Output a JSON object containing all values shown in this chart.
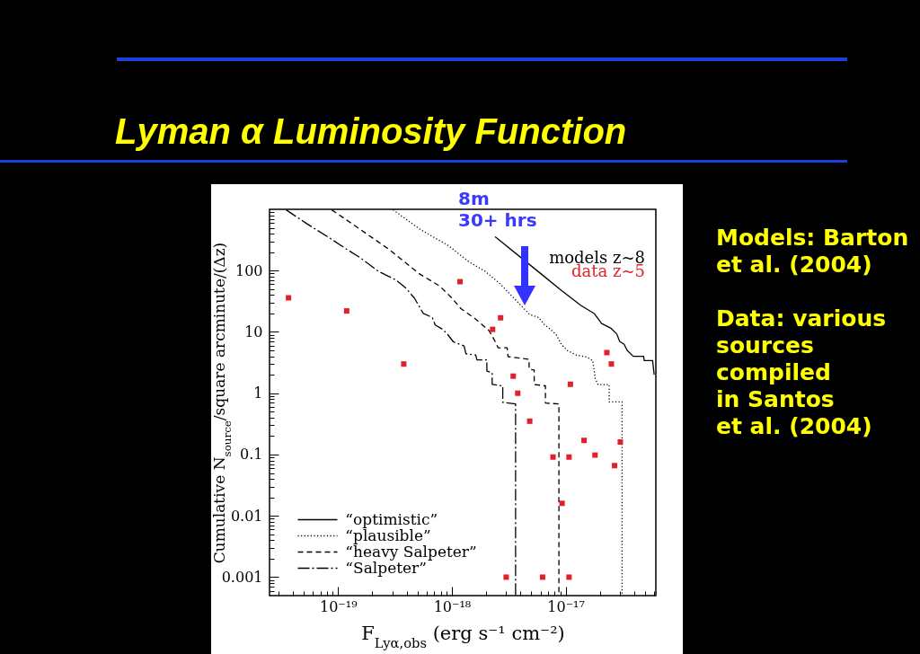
{
  "chart_data": {
    "type": "line",
    "title": "Lyman α Luminosity Function",
    "xlabel": "F$_{Lyα,obs}$ (erg s⁻¹ cm⁻²)",
    "ylabel": "Cumulative N$_{source}$/square arcminute/(Δz)",
    "log": "xy",
    "xlim": [
      2.5e-20,
      6.2e-17
    ],
    "ylim": [
      0.0005,
      1000
    ],
    "xticks": [
      {
        "value": 3e-20,
        "label": null
      },
      {
        "value": 4e-20,
        "label": null
      },
      {
        "value": 5e-20,
        "label": null
      },
      {
        "value": 6e-20,
        "label": null
      },
      {
        "value": 7e-20,
        "label": null
      },
      {
        "value": 8e-20,
        "label": null
      },
      {
        "value": 9e-20,
        "label": null
      },
      {
        "value": 1e-19,
        "label": "10⁻¹⁹"
      },
      {
        "value": 2e-19,
        "label": null
      },
      {
        "value": 3e-19,
        "label": null
      },
      {
        "value": 4e-19,
        "label": null
      },
      {
        "value": 5e-19,
        "label": null
      },
      {
        "value": 6e-19,
        "label": null
      },
      {
        "value": 7e-19,
        "label": null
      },
      {
        "value": 8e-19,
        "label": null
      },
      {
        "value": 9e-19,
        "label": null
      },
      {
        "value": 1e-18,
        "label": "10⁻¹⁸"
      },
      {
        "value": 2e-18,
        "label": null
      },
      {
        "value": 3e-18,
        "label": null
      },
      {
        "value": 4e-18,
        "label": null
      },
      {
        "value": 5e-18,
        "label": null
      },
      {
        "value": 6e-18,
        "label": null
      },
      {
        "value": 7e-18,
        "label": null
      },
      {
        "value": 8e-18,
        "label": null
      },
      {
        "value": 9e-18,
        "label": null
      },
      {
        "value": 1e-17,
        "label": "10⁻¹⁷"
      },
      {
        "value": 2e-17,
        "label": null
      },
      {
        "value": 3e-17,
        "label": null
      },
      {
        "value": 4e-17,
        "label": null
      },
      {
        "value": 5e-17,
        "label": null
      },
      {
        "value": 6e-17,
        "label": null
      }
    ],
    "yticks": [
      {
        "value": 0.0006,
        "label": null
      },
      {
        "value": 0.0007,
        "label": null
      },
      {
        "value": 0.0008,
        "label": null
      },
      {
        "value": 0.0009,
        "label": null
      },
      0.001,
      {
        "value": 0.002,
        "label": null
      },
      {
        "value": 0.003,
        "label": null
      },
      {
        "value": 0.004,
        "label": null
      },
      {
        "value": 0.005,
        "label": null
      },
      {
        "value": 0.006,
        "label": null
      },
      {
        "value": 0.007,
        "label": null
      },
      {
        "value": 0.008,
        "label": null
      },
      {
        "value": 0.009,
        "label": null
      },
      0.01,
      {
        "value": 0.02,
        "label": null
      },
      {
        "value": 0.03,
        "label": null
      },
      {
        "value": 0.04,
        "label": null
      },
      {
        "value": 0.05,
        "label": null
      },
      {
        "value": 0.06,
        "label": null
      },
      {
        "value": 0.07,
        "label": null
      },
      {
        "value": 0.08,
        "label": null
      },
      {
        "value": 0.09,
        "label": null
      },
      0.1,
      {
        "value": 0.2,
        "label": null
      },
      {
        "value": 0.3,
        "label": null
      },
      {
        "value": 0.4,
        "label": null
      },
      {
        "value": 0.5,
        "label": null
      },
      {
        "value": 0.6,
        "label": null
      },
      {
        "value": 0.7,
        "label": null
      },
      {
        "value": 0.8,
        "label": null
      },
      {
        "value": 0.9,
        "label": null
      },
      1,
      {
        "value": 2,
        "label": null
      },
      {
        "value": 3,
        "label": null
      },
      {
        "value": 4,
        "label": null
      },
      {
        "value": 5,
        "label": null
      },
      {
        "value": 6,
        "label": null
      },
      {
        "value": 7,
        "label": null
      },
      {
        "value": 8,
        "label": null
      },
      {
        "value": 9,
        "label": null
      },
      10,
      {
        "value": 20,
        "label": null
      },
      {
        "value": 30,
        "label": null
      },
      {
        "value": 40,
        "label": null
      },
      {
        "value": 50,
        "label": null
      },
      {
        "value": 60,
        "label": null
      },
      {
        "value": 70,
        "label": null
      },
      {
        "value": 80,
        "label": null
      },
      {
        "value": 90,
        "label": null
      },
      100,
      {
        "value": 200,
        "label": null
      },
      {
        "value": 300,
        "label": null
      },
      {
        "value": 400,
        "label": null
      },
      {
        "value": 500,
        "label": null
      },
      {
        "value": 600,
        "label": null
      },
      {
        "value": 700,
        "label": null
      },
      {
        "value": 800,
        "label": null
      },
      {
        "value": 900,
        "label": null
      }
    ],
    "legend": "bottom left",
    "series": [
      {
        "name": "“optimistic”",
        "color": "#000000",
        "line_style": "solid",
        "x": [
          2.4e-18,
          6.15e-18,
          8.85e-18,
          1.36e-17,
          1.78e-17,
          2.07e-17,
          2.48e-17,
          2.81e-17,
          2.98e-17,
          3.26e-17,
          3.47e-17,
          3.92e-17,
          4.84e-17,
          4.9e-17,
          5.81e-17,
          5.99e-17
        ],
        "values": [
          356,
          87,
          50,
          27,
          20,
          13.7,
          11.6,
          9.3,
          7.0,
          6.3,
          5.0,
          4.0,
          4.0,
          3.4,
          3.4,
          2.0
        ]
      },
      {
        "name": "“plausible”",
        "color": "#000000",
        "line_style": "dotted",
        "x": [
          3.05e-19,
          5.27e-19,
          9.38e-19,
          1.43e-18,
          1.95e-18,
          2.63e-18,
          4.83e-18,
          5.79e-18,
          6.54e-18,
          7.38e-18,
          8.33e-18,
          9.13e-18,
          1.03e-17,
          1.24e-17,
          1.53e-17,
          1.73e-17,
          1.82e-17,
          1.93e-17,
          2.41e-17,
          2.41e-17,
          3.13e-17,
          3.13e-17
        ],
        "values": [
          980,
          470,
          254,
          137,
          98,
          62,
          19.2,
          17.2,
          13,
          11,
          8.8,
          6.3,
          5.0,
          4.2,
          3.9,
          3.4,
          1.72,
          1.38,
          1.38,
          0.72,
          0.72,
          0.0005
        ]
      },
      {
        "name": "“heavy Salpeter”",
        "color": "#000000",
        "line_style": "dashed",
        "x": [
          8.8e-20,
          1.57e-19,
          2.87e-19,
          5.27e-19,
          7.82e-19,
          9.96e-19,
          1.2e-18,
          1.62e-18,
          2.13e-18,
          2.4e-18,
          2.55e-18,
          3.06e-18,
          3.12e-18,
          4.77e-18,
          4.77e-18,
          5.29e-18,
          5.29e-18,
          6.64e-18,
          6.64e-18,
          8.72e-18,
          8.72e-18
        ],
        "values": [
          980,
          470,
          215,
          87,
          56,
          36,
          24,
          16.2,
          10.4,
          7.0,
          5.5,
          5.5,
          3.95,
          3.57,
          2.47,
          2.4,
          1.39,
          1.32,
          0.69,
          0.67,
          0.0005
        ]
      },
      {
        "name": "“Salpeter”",
        "color": "#000000",
        "line_style": "dashdot",
        "x": [
          3.5e-20,
          5.26e-20,
          8.53e-20,
          1.12e-19,
          1.57e-19,
          2.25e-19,
          3.24e-19,
          3.89e-19,
          4.67e-19,
          5.61e-19,
          6.73e-19,
          7.14e-19,
          8.31e-19,
          9.1e-19,
          1.03e-18,
          1.28e-18,
          1.33e-18,
          1.62e-18,
          1.66e-18,
          2.03e-18,
          2.03e-18,
          2.26e-18,
          2.26e-18,
          2.8e-18,
          2.8e-18,
          3.63e-18,
          3.63e-18
        ],
        "values": [
          980,
          590,
          336,
          240,
          162,
          98,
          70,
          53,
          36,
          20,
          17.2,
          13,
          11,
          9.3,
          6.9,
          5.9,
          4.4,
          4.2,
          3.5,
          3.5,
          2.3,
          2.15,
          1.39,
          1.32,
          0.71,
          0.67,
          0.0005
        ]
      },
      {
        "name": "data z~5",
        "type": "scatter",
        "color": "#e0202a",
        "marker": "square",
        "x": [
          3.67e-20,
          1.19e-19,
          3.78e-19,
          1.18e-18,
          2.68e-18,
          2.28e-18,
          3.46e-18,
          3.79e-18,
          1.1e-17,
          2.3e-17,
          2.52e-17,
          4.83e-18,
          7.74e-18,
          1.07e-17,
          1.45e-17,
          1.81e-17,
          2.69e-17,
          3.02e-17,
          9.3e-18,
          3e-18,
          6.27e-18,
          1.07e-17
        ],
        "values": [
          36,
          22,
          3.0,
          66,
          17,
          11,
          1.9,
          1.0,
          1.4,
          4.6,
          3.0,
          0.35,
          0.091,
          0.091,
          0.17,
          0.098,
          0.066,
          0.16,
          0.016,
          0.001,
          0.001,
          0.001
        ]
      }
    ],
    "annotations": [
      "models z~8",
      "8m\n30+ hrs",
      "Models: Barton\net al. (2004)",
      "Data: various\nsources\ncompiled\nin Santos\net al. (2004)"
    ]
  }
}
